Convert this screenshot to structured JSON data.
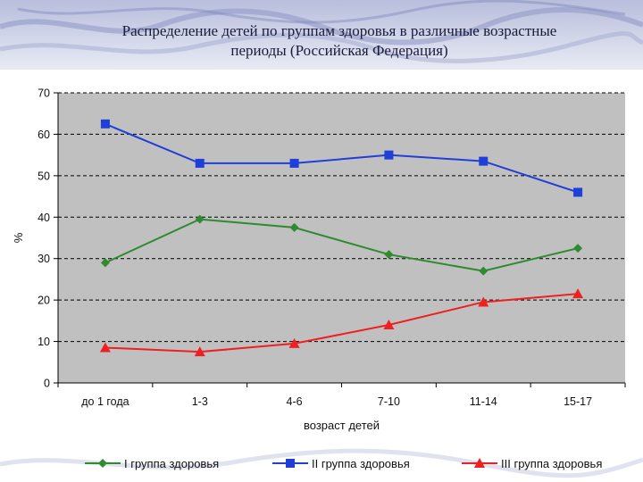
{
  "slide": {
    "title_line1": "Распределение детей по группам здоровья в различные возрастные",
    "title_line2": "периоды (Российская Федерация)"
  },
  "colors": {
    "background": "#ffffff",
    "plot_area": "#c0c0c0",
    "gridline": "#000000",
    "series": [
      "#2e8b2e",
      "#1f3fd9",
      "#ee2020"
    ]
  },
  "chart_data": {
    "type": "line",
    "title": "Распределение детей по группам здоровья в различные возрастные периоды (Российская Федерация)",
    "xlabel": "возраст детей",
    "ylabel": "%",
    "ylim": [
      0,
      70
    ],
    "yticks": [
      0,
      10,
      20,
      30,
      40,
      50,
      60,
      70
    ],
    "grid": true,
    "grid_style": "dashed horizontal",
    "legend_position": "bottom",
    "categories": [
      "до 1 года",
      "1-3",
      "4-6",
      "7-10",
      "11-14",
      "15-17"
    ],
    "series": [
      {
        "name": "I группа здоровья",
        "color": "#2e8b2e",
        "marker": "diamond",
        "values": [
          29,
          39.5,
          37.5,
          31,
          27,
          32.5
        ]
      },
      {
        "name": "II группа здоровья",
        "color": "#1f3fd9",
        "marker": "square",
        "values": [
          62.5,
          53,
          53,
          55,
          53.5,
          46
        ]
      },
      {
        "name": "III группа здоровья",
        "color": "#ee2020",
        "marker": "triangle",
        "values": [
          8.5,
          7.5,
          9.5,
          14,
          19.5,
          21.5
        ]
      }
    ]
  }
}
